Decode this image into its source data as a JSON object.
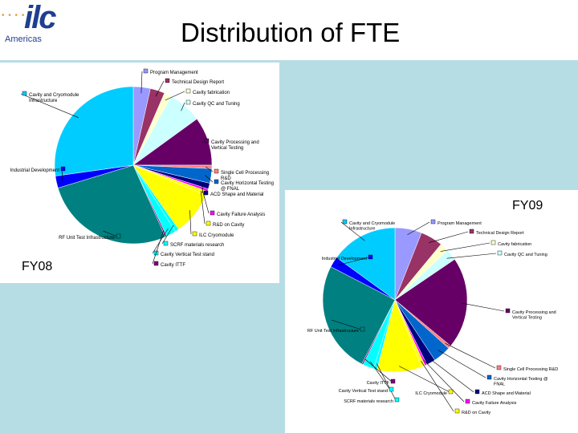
{
  "header": {
    "title": "Distribution of FTE",
    "logo_mark": "ilc",
    "logo_text": "Americas",
    "logo_dots": "• • • •"
  },
  "chart_data": [
    {
      "type": "pie",
      "title": "FY08",
      "categories": [
        "Program Management",
        "Technical Design Report",
        "Cavity fabrication",
        "Cavity QC and Tuning",
        "Cavity Processing and Vertical Testing",
        "Single Cell Processing R&D",
        "Cavity Horizontal Testing @ FNAL",
        "ACD Shape and Material",
        "Cavity Failure Analysis",
        "R&D on Cavity",
        "ILC Cryomodule",
        "SCRF materials research",
        "Cavity Vertical Test stand",
        "Cavity ITTF",
        "RF Unit Test Infrastructure",
        "Industrial Development",
        "Cavity and Cryomodule Infrastructure"
      ],
      "labels_display": [
        "Program Management",
        "Technical Design Report",
        "Cavity fabrication",
        "Cavity QC and Tuning",
        "Cavity Processing and\nVertical Testing",
        "Single Cell Processing\nR&D",
        "Cavity Horizontal Testing\n@ FNAL",
        "ACD Shape and Material",
        "Cavity Failure Analysis",
        "R&D on Cavity",
        "ILC Cryomodule",
        "SCRF materials research",
        "Cavity Vertical Test stand",
        "Cavity ITTF",
        "RF Unit Test Infrastructure",
        "Industrial Development",
        "Cavity and Cryomodule\nInfrastructure"
      ],
      "values": [
        3.5,
        3.0,
        1.5,
        7.0,
        10.0,
        0.7,
        3.0,
        1.2,
        0.5,
        0.8,
        9.0,
        0.8,
        2.0,
        0.3,
        27.0,
        2.5,
        27.2
      ],
      "colors": [
        "#9999ff",
        "#993366",
        "#ffffcc",
        "#ccffff",
        "#660066",
        "#ff8080",
        "#0066cc",
        "#000080",
        "#ff00ff",
        "#ffff00",
        "#ffff00",
        "#00ffff",
        "#00ffff",
        "#800080",
        "#008080",
        "#0000ff",
        "#00ccff"
      ]
    },
    {
      "type": "pie",
      "title": "FY09",
      "categories": [
        "Program Management",
        "Technical Design Report",
        "Cavity fabrication",
        "Cavity QC and Tuning",
        "Cavity Processing and Vertical Testing",
        "Single Cell Processing R&D",
        "Cavity Horizontal Testing @ FNAL",
        "ACD Shape and Material",
        "Cavity Failure Analysis",
        "R&D on Cavity",
        "ILC Cryomodule",
        "SCRF materials research",
        "Cavity Vertical Test stand",
        "Cavity ITTF",
        "RF Unit Test Infrastructure",
        "Industrial Development",
        "Cavity and Cryomodule Infrastructure"
      ],
      "labels_display": [
        "Program Management",
        "Technical Design Report",
        "Cavity fabrication",
        "Cavity QC and Tuning",
        "Cavity Processing and\nVertical Testing",
        "Single Cell Processing R&D",
        "Cavity Horizontal Testing @\nFNAL",
        "ACD Shape and Material",
        "Cavity Failure Analysis",
        "R&D on Cavity",
        "ILC Cryomodule",
        "SCRF materials research",
        "Cavity Vertical Test stand",
        "Cavity ITTF",
        "RF Unit Test Infrastructure",
        "Industrial Development",
        "Cavity and Cryomodule\nInfrastructure"
      ],
      "values": [
        6.0,
        5.0,
        2.0,
        2.5,
        20.5,
        0.7,
        4.0,
        2.0,
        0.5,
        0.8,
        10.0,
        0.8,
        2.5,
        0.3,
        25.0,
        2.4,
        15.0
      ],
      "colors": [
        "#9999ff",
        "#993366",
        "#ffffcc",
        "#ccffff",
        "#660066",
        "#ff8080",
        "#0066cc",
        "#000080",
        "#ff00ff",
        "#ffff00",
        "#ffff00",
        "#00ffff",
        "#00ffff",
        "#800080",
        "#008080",
        "#0000ff",
        "#00ccff"
      ]
    }
  ]
}
